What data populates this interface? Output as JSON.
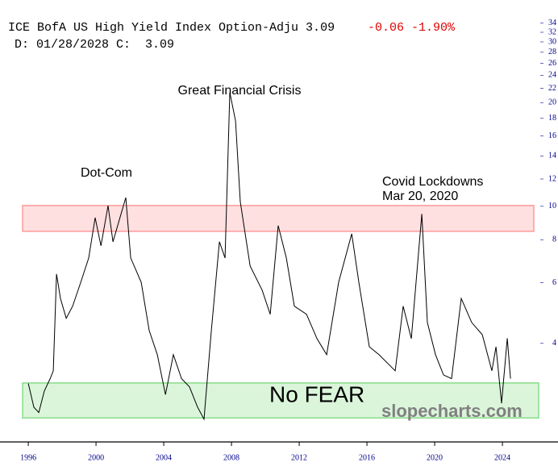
{
  "chart_data": {
    "type": "line",
    "title": "ICE BofA US High Yield Index Option-Adju 3.09",
    "change": "-0.06 -1.90%",
    "subtitle": "D: 01/28/2028 C:  3.09",
    "annotations": [
      "Dot-Com",
      "Great Financial Crisis",
      "Covid Lockdowns",
      "Mar 20, 2020",
      "No FEAR",
      "slopecharts.com"
    ],
    "x": [
      1996.0,
      1996.33,
      1996.62,
      1996.95,
      1997.29,
      1997.48,
      1997.67,
      1997.9,
      1998.24,
      1998.62,
      1999.1,
      1999.57,
      1999.95,
      2000.29,
      2000.71,
      2001.0,
      2001.48,
      2001.76,
      2002.05,
      2002.67,
      2003.14,
      2003.62,
      2004.1,
      2004.57,
      2005.05,
      2005.52,
      2006.0,
      2006.38,
      2006.81,
      2007.29,
      2007.62,
      2007.9,
      2008.24,
      2008.52,
      2009.1,
      2009.81,
      2010.29,
      2010.76,
      2011.24,
      2011.71,
      2012.43,
      2013.05,
      2013.62,
      2014.33,
      2015.1,
      2015.52,
      2016.14,
      2016.71,
      2017.67,
      2018.14,
      2018.62,
      2019.24,
      2019.57,
      2020.05,
      2020.52,
      2021.0,
      2021.57,
      2022.19,
      2022.81,
      2023.38,
      2023.62,
      2023.95,
      2024.29,
      2024.48
    ],
    "values": [
      3.06,
      2.61,
      2.52,
      2.91,
      3.16,
      3.33,
      6.36,
      5.4,
      4.73,
      5.13,
      6.02,
      7.08,
      9.27,
      7.68,
      10.05,
      7.89,
      9.5,
      10.6,
      7.08,
      6.02,
      4.36,
      3.71,
      2.84,
      3.71,
      3.16,
      2.99,
      2.61,
      2.41,
      4.36,
      7.89,
      7.08,
      21.4,
      17.7,
      10.3,
      6.71,
      5.71,
      4.86,
      8.79,
      7.08,
      5.13,
      4.86,
      4.13,
      3.71,
      6.02,
      8.32,
      6.02,
      3.91,
      3.71,
      3.33,
      5.13,
      4.13,
      9.5,
      4.6,
      3.71,
      3.24,
      3.16,
      5.4,
      4.6,
      4.24,
      3.33,
      3.91,
      2.68,
      4.14,
      3.16
    ],
    "color": "#000000",
    "log_scale": true,
    "xlim": [
      1994.33,
      2025.76
    ],
    "ylim": [
      2.07,
      39.7
    ],
    "xticks": [
      1996,
      2000,
      2004,
      2008,
      2012,
      2016,
      2020,
      2024
    ],
    "yticks": [
      4,
      6,
      8,
      10,
      12,
      14,
      16,
      18,
      20,
      22,
      24,
      26,
      28,
      30,
      32,
      34
    ],
    "bands": [
      {
        "range": [
          8.46,
          10.05
        ],
        "color": "#ff9999"
      },
      {
        "range": [
          2.43,
          3.07
        ],
        "color": "#88dd88"
      }
    ]
  }
}
